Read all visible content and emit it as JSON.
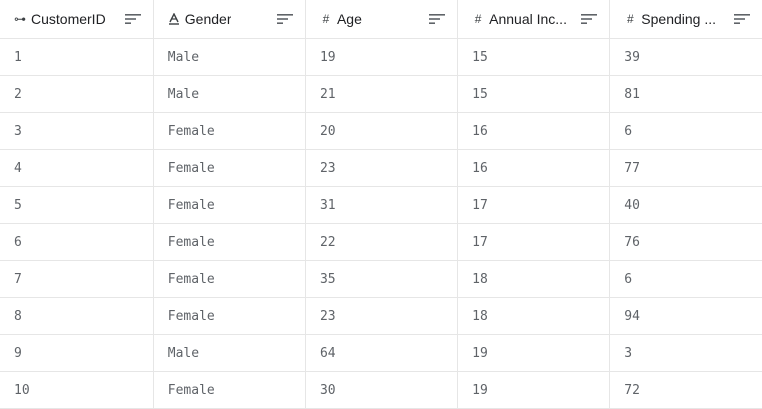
{
  "columns": [
    {
      "label": "CustomerID",
      "icon": "key-link-icon",
      "icon_glyph": "⊶"
    },
    {
      "label": "Gender",
      "icon": "text-type-icon",
      "icon_glyph": "A"
    },
    {
      "label": "Age",
      "icon": "hash-icon",
      "icon_glyph": "#"
    },
    {
      "label": "Annual Inc...",
      "icon": "hash-icon",
      "icon_glyph": "#"
    },
    {
      "label": "Spending ...",
      "icon": "hash-icon",
      "icon_glyph": "#"
    }
  ],
  "rows": [
    [
      "1",
      "Male",
      "19",
      "15",
      "39"
    ],
    [
      "2",
      "Male",
      "21",
      "15",
      "81"
    ],
    [
      "3",
      "Female",
      "20",
      "16",
      "6"
    ],
    [
      "4",
      "Female",
      "23",
      "16",
      "77"
    ],
    [
      "5",
      "Female",
      "31",
      "17",
      "40"
    ],
    [
      "6",
      "Female",
      "22",
      "17",
      "76"
    ],
    [
      "7",
      "Female",
      "35",
      "18",
      "6"
    ],
    [
      "8",
      "Female",
      "23",
      "18",
      "94"
    ],
    [
      "9",
      "Male",
      "64",
      "19",
      "3"
    ],
    [
      "10",
      "Female",
      "30",
      "19",
      "72"
    ]
  ],
  "colors": {
    "border": "#e6e6e6",
    "header_text": "#202124",
    "cell_text": "#5f6368"
  }
}
